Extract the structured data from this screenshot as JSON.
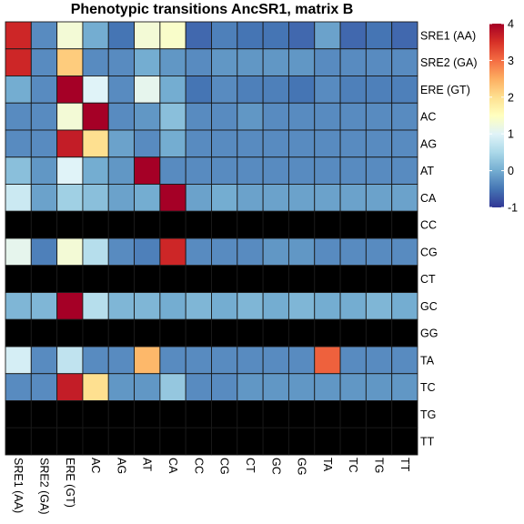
{
  "chart_data": {
    "type": "heatmap",
    "title": "Phenotypic transitions AncSR1, matrix B",
    "xlabel": "",
    "ylabel": "",
    "row_labels": [
      "SRE1 (AA)",
      "SRE2 (GA)",
      "ERE (GT)",
      "AC",
      "AG",
      "AT",
      "CA",
      "CC",
      "CG",
      "CT",
      "GC",
      "GG",
      "TA",
      "TC",
      "TG",
      "TT"
    ],
    "col_labels": [
      "SRE1 (AA)",
      "SRE2 (GA)",
      "ERE (GT)",
      "AC",
      "AG",
      "AT",
      "CA",
      "CC",
      "CG",
      "CT",
      "GC",
      "GG",
      "TA",
      "TC",
      "TG",
      "TT"
    ],
    "values": [
      [
        3.6,
        -0.3,
        1.3,
        0.0,
        -0.5,
        1.3,
        1.4,
        -0.6,
        -0.4,
        -0.5,
        -0.5,
        -0.6,
        -0.1,
        -0.6,
        -0.5,
        -0.6
      ],
      [
        3.6,
        -0.3,
        2.2,
        -0.3,
        -0.3,
        0.0,
        -0.2,
        -0.3,
        -0.2,
        -0.2,
        -0.2,
        -0.2,
        -0.3,
        -0.3,
        -0.3,
        -0.3
      ],
      [
        0.0,
        -0.3,
        4.0,
        1.0,
        -0.3,
        1.1,
        0.0,
        -0.5,
        -0.3,
        -0.4,
        -0.4,
        -0.5,
        -0.3,
        -0.4,
        -0.4,
        -0.4
      ],
      [
        -0.3,
        -0.3,
        1.3,
        4.0,
        -0.3,
        -0.2,
        0.2,
        -0.3,
        -0.3,
        -0.2,
        -0.3,
        -0.3,
        -0.3,
        -0.3,
        -0.3,
        -0.3
      ],
      [
        -0.3,
        -0.3,
        3.7,
        2.0,
        -0.1,
        -0.3,
        0.0,
        -0.3,
        -0.3,
        -0.3,
        -0.3,
        -0.3,
        -0.3,
        -0.3,
        -0.3,
        -0.3
      ],
      [
        0.2,
        -0.2,
        1.0,
        0.0,
        -0.2,
        4.1,
        -0.3,
        -0.3,
        -0.3,
        -0.3,
        -0.3,
        -0.3,
        -0.3,
        -0.3,
        -0.3,
        -0.3
      ],
      [
        0.8,
        -0.1,
        0.4,
        0.2,
        -0.1,
        0.0,
        4.0,
        -0.1,
        0.0,
        -0.1,
        -0.1,
        -0.1,
        -0.1,
        -0.1,
        -0.1,
        -0.1
      ],
      [
        null,
        null,
        null,
        null,
        null,
        null,
        null,
        null,
        null,
        null,
        null,
        null,
        null,
        null,
        null,
        null
      ],
      [
        1.1,
        -0.4,
        1.3,
        0.6,
        -0.3,
        -0.4,
        3.6,
        -0.3,
        -0.3,
        -0.3,
        -0.2,
        -0.2,
        -0.3,
        -0.3,
        -0.3,
        -0.3
      ],
      [
        null,
        null,
        null,
        null,
        null,
        null,
        null,
        null,
        null,
        null,
        null,
        null,
        null,
        null,
        null,
        null
      ],
      [
        0.1,
        0.1,
        4.1,
        0.6,
        0.1,
        0.1,
        0.0,
        0.1,
        0.0,
        0.1,
        0.0,
        0.1,
        0.0,
        0.0,
        0.1,
        0.0
      ],
      [
        null,
        null,
        null,
        null,
        null,
        null,
        null,
        null,
        null,
        null,
        null,
        null,
        null,
        null,
        null,
        null
      ],
      [
        0.9,
        -0.3,
        0.7,
        -0.3,
        -0.3,
        2.4,
        -0.3,
        -0.3,
        -0.3,
        -0.3,
        -0.3,
        -0.3,
        3.1,
        -0.3,
        -0.3,
        -0.3
      ],
      [
        -0.3,
        -0.3,
        3.7,
        2.0,
        -0.2,
        -0.2,
        0.3,
        -0.3,
        -0.3,
        -0.2,
        -0.2,
        -0.2,
        -0.2,
        -0.2,
        -0.2,
        -0.2
      ],
      [
        null,
        null,
        null,
        null,
        null,
        null,
        null,
        null,
        null,
        null,
        null,
        null,
        null,
        null,
        null,
        null
      ],
      [
        null,
        null,
        null,
        null,
        null,
        null,
        null,
        null,
        null,
        null,
        null,
        null,
        null,
        null,
        null,
        null
      ]
    ],
    "color_scale": {
      "min": -1,
      "max": 4,
      "ticks": [
        -1,
        0,
        1,
        2,
        3,
        4
      ],
      "palette": "RdYlBu (reversed)",
      "missing_color": "#000000"
    },
    "legend_position": "right",
    "grid": true
  }
}
